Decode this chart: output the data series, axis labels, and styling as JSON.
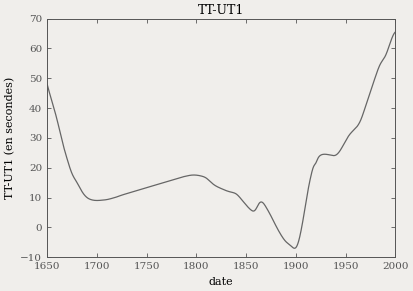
{
  "title": "TT-UT1",
  "xlabel": "date",
  "ylabel": "TT-UT1 (en secondes)",
  "xlim": [
    1650,
    2000
  ],
  "ylim": [
    -10,
    70
  ],
  "xticks": [
    1650,
    1700,
    1750,
    1800,
    1850,
    1900,
    1950,
    2000
  ],
  "yticks": [
    -10,
    0,
    10,
    20,
    30,
    40,
    50,
    60,
    70
  ],
  "line_color": "#666666",
  "background_color": "#f0eeeb",
  "data_points": [
    [
      1650,
      48
    ],
    [
      1655,
      42
    ],
    [
      1660,
      36
    ],
    [
      1665,
      29
    ],
    [
      1670,
      23
    ],
    [
      1675,
      18
    ],
    [
      1680,
      15
    ],
    [
      1685,
      12
    ],
    [
      1690,
      10
    ],
    [
      1695,
      9.2
    ],
    [
      1700,
      9.0
    ],
    [
      1705,
      9.1
    ],
    [
      1710,
      9.3
    ],
    [
      1715,
      9.7
    ],
    [
      1720,
      10.2
    ],
    [
      1725,
      10.8
    ],
    [
      1730,
      11.3
    ],
    [
      1735,
      11.8
    ],
    [
      1740,
      12.3
    ],
    [
      1745,
      12.8
    ],
    [
      1750,
      13.3
    ],
    [
      1755,
      13.8
    ],
    [
      1760,
      14.3
    ],
    [
      1765,
      14.8
    ],
    [
      1770,
      15.3
    ],
    [
      1775,
      15.8
    ],
    [
      1780,
      16.3
    ],
    [
      1785,
      16.8
    ],
    [
      1790,
      17.2
    ],
    [
      1795,
      17.5
    ],
    [
      1800,
      17.5
    ],
    [
      1805,
      17.2
    ],
    [
      1810,
      16.5
    ],
    [
      1815,
      15.0
    ],
    [
      1820,
      13.8
    ],
    [
      1825,
      13.0
    ],
    [
      1830,
      12.3
    ],
    [
      1835,
      11.8
    ],
    [
      1840,
      11.2
    ],
    [
      1845,
      9.5
    ],
    [
      1850,
      7.5
    ],
    [
      1855,
      5.8
    ],
    [
      1858,
      5.5
    ],
    [
      1860,
      6.2
    ],
    [
      1863,
      8.0
    ],
    [
      1865,
      8.5
    ],
    [
      1867,
      8.2
    ],
    [
      1870,
      6.8
    ],
    [
      1875,
      3.8
    ],
    [
      1880,
      0.5
    ],
    [
      1885,
      -2.5
    ],
    [
      1890,
      -4.8
    ],
    [
      1895,
      -6.2
    ],
    [
      1900,
      -6.8
    ],
    [
      1902,
      -5.5
    ],
    [
      1905,
      -1.5
    ],
    [
      1908,
      4.0
    ],
    [
      1910,
      8.0
    ],
    [
      1912,
      12.0
    ],
    [
      1915,
      17.0
    ],
    [
      1918,
      20.5
    ],
    [
      1920,
      21.5
    ],
    [
      1922,
      23.0
    ],
    [
      1925,
      24.2
    ],
    [
      1928,
      24.5
    ],
    [
      1930,
      24.5
    ],
    [
      1935,
      24.2
    ],
    [
      1940,
      24.2
    ],
    [
      1945,
      26.0
    ],
    [
      1950,
      29.0
    ],
    [
      1955,
      31.5
    ],
    [
      1960,
      33.2
    ],
    [
      1965,
      35.8
    ],
    [
      1970,
      40.5
    ],
    [
      1975,
      45.5
    ],
    [
      1980,
      50.5
    ],
    [
      1985,
      54.8
    ],
    [
      1990,
      57.5
    ],
    [
      1995,
      62.0
    ],
    [
      2000,
      65.5
    ]
  ]
}
